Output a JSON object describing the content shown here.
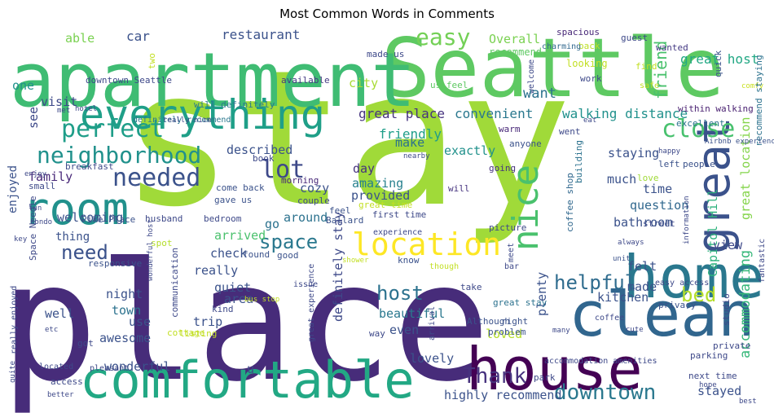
{
  "chart_data": {
    "type": "wordcloud",
    "title": "Most Common Words in Comments",
    "colormap": "viridis",
    "words": [
      {
        "text": "stay",
        "color": "#a0da39"
      },
      {
        "text": "place",
        "color": "#472c7a"
      },
      {
        "text": "Seattle",
        "color": "#5ec962"
      },
      {
        "text": "apartment",
        "color": "#3fbc73"
      },
      {
        "text": "house",
        "color": "#440154"
      },
      {
        "text": "clean",
        "color": "#31668e"
      },
      {
        "text": "home",
        "color": "#2a788e"
      },
      {
        "text": "comfortable",
        "color": "#22a884"
      },
      {
        "text": "room",
        "color": "#21918c"
      },
      {
        "text": "everything",
        "color": "#1f9f88"
      },
      {
        "text": "location",
        "color": "#fde725"
      },
      {
        "text": "neighborhood",
        "color": "#21918c"
      },
      {
        "text": "great",
        "color": "#3b528b"
      },
      {
        "text": "nice",
        "color": "#4ac16d"
      },
      {
        "text": "perfect",
        "color": "#1f9e89"
      },
      {
        "text": "needed",
        "color": "#3b528b"
      },
      {
        "text": "close",
        "color": "#48c16e"
      },
      {
        "text": "easy",
        "color": "#73d056"
      },
      {
        "text": "downtown",
        "color": "#2a788e"
      },
      {
        "text": "lot",
        "color": "#3e4989"
      },
      {
        "text": "space",
        "color": "#2a788e"
      },
      {
        "text": "need",
        "color": "#3b528b"
      },
      {
        "text": "host",
        "color": "#2c728e"
      },
      {
        "text": "helpful",
        "color": "#2f6c8e"
      },
      {
        "text": "Thank",
        "color": "#46327e"
      },
      {
        "text": "bed",
        "color": "#b5de2b"
      },
      {
        "text": "friend",
        "color": "#4ac16d"
      },
      {
        "text": "accommodating",
        "color": "#35b779"
      },
      {
        "text": "Capitol Hill",
        "color": "#2db27d"
      },
      {
        "text": "great location",
        "color": "#84d44b"
      },
      {
        "text": "great host",
        "color": "#22a884"
      },
      {
        "text": "walking distance",
        "color": "#21918c"
      },
      {
        "text": "great place",
        "color": "#46337f"
      },
      {
        "text": "convenient",
        "color": "#2a788e"
      },
      {
        "text": "restaurant",
        "color": "#3b528b"
      },
      {
        "text": "car",
        "color": "#3b528b"
      },
      {
        "text": "able",
        "color": "#7ad151"
      },
      {
        "text": "Overall",
        "color": "#7ad151"
      },
      {
        "text": "recommend",
        "color": "#5ec962"
      },
      {
        "text": "made us",
        "color": "#3e4989"
      },
      {
        "text": "spacious",
        "color": "#482878"
      },
      {
        "text": "guest",
        "color": "#3e4989"
      },
      {
        "text": "back",
        "color": "#bddf26"
      },
      {
        "text": "wanted",
        "color": "#443983"
      },
      {
        "text": "charming",
        "color": "#31688e"
      },
      {
        "text": "looking",
        "color": "#c2df23"
      },
      {
        "text": "quick",
        "color": "#3b528b"
      },
      {
        "text": "find",
        "color": "#c2df23"
      },
      {
        "text": "work",
        "color": "#3e4989"
      },
      {
        "text": "us feel",
        "color": "#5ec962"
      },
      {
        "text": "welcome",
        "color": "#3e4989"
      },
      {
        "text": "safe",
        "color": "#c2df23"
      },
      {
        "text": "comfy",
        "color": "#c8e020"
      },
      {
        "text": "available",
        "color": "#443983"
      },
      {
        "text": "downtown Seattle",
        "color": "#3e4989"
      },
      {
        "text": "one",
        "color": "#21918c"
      },
      {
        "text": "visit",
        "color": "#3e4989"
      },
      {
        "text": "see",
        "color": "#3e4989"
      },
      {
        "text": "city",
        "color": "#a8db34"
      },
      {
        "text": "want",
        "color": "#2c728e"
      },
      {
        "text": "will definitely",
        "color": "#2a788e"
      },
      {
        "text": "definitely recommend",
        "color": "#2a788e"
      },
      {
        "text": "within walking",
        "color": "#481f70"
      },
      {
        "text": "excellent",
        "color": "#2c728e"
      },
      {
        "text": "warm",
        "color": "#482878"
      },
      {
        "text": "went",
        "color": "#3e4989"
      },
      {
        "text": "staying",
        "color": "#3b528b"
      },
      {
        "text": "recommend staying",
        "color": "#2c728e"
      },
      {
        "text": "Airbnb experience",
        "color": "#3b528b"
      },
      {
        "text": "happy",
        "color": "#3e4989"
      },
      {
        "text": "people",
        "color": "#3b528b"
      },
      {
        "text": "left",
        "color": "#3b528b"
      },
      {
        "text": "building",
        "color": "#2c728e"
      },
      {
        "text": "described",
        "color": "#3b528b"
      },
      {
        "text": "friendly",
        "color": "#1f9e89"
      },
      {
        "text": "exactly",
        "color": "#21918c"
      },
      {
        "text": "make",
        "color": "#2c728e"
      },
      {
        "text": "day",
        "color": "#46327e"
      },
      {
        "text": "amazing",
        "color": "#27808e"
      },
      {
        "text": "much",
        "color": "#3b528b"
      },
      {
        "text": "time",
        "color": "#3b528b"
      },
      {
        "text": "question",
        "color": "#31688e"
      },
      {
        "text": "love",
        "color": "#a0da39"
      },
      {
        "text": "street",
        "color": "#3e4989"
      },
      {
        "text": "family",
        "color": "#482878"
      },
      {
        "text": "cozy",
        "color": "#3b528b"
      },
      {
        "text": "provided",
        "color": "#3b528b"
      },
      {
        "text": "morning",
        "color": "#482878"
      },
      {
        "text": "first time",
        "color": "#3e4989"
      },
      {
        "text": "book",
        "color": "#3e4989"
      },
      {
        "text": "going",
        "color": "#46337f"
      },
      {
        "text": "will",
        "color": "#46337f"
      },
      {
        "text": "couple",
        "color": "#3e4989"
      },
      {
        "text": "great time",
        "color": "#c2df23"
      },
      {
        "text": "anyone",
        "color": "#3b528b"
      },
      {
        "text": "enjoyed",
        "color": "#3b528b"
      },
      {
        "text": "welcoming",
        "color": "#3b528b"
      },
      {
        "text": "thing",
        "color": "#3b528b"
      },
      {
        "text": "around",
        "color": "#2c728e"
      },
      {
        "text": "go",
        "color": "#2c728e"
      },
      {
        "text": "come back",
        "color": "#3b528b"
      },
      {
        "text": "gave us",
        "color": "#3b528b"
      },
      {
        "text": "feel",
        "color": "#3b528b"
      },
      {
        "text": "Ballard",
        "color": "#3b528b"
      },
      {
        "text": "bathroom",
        "color": "#3b528b"
      },
      {
        "text": "coffee shop",
        "color": "#31688e"
      },
      {
        "text": "Pike Place",
        "color": "#3b528b"
      },
      {
        "text": "Space Needle",
        "color": "#3e4989"
      },
      {
        "text": "arrived",
        "color": "#4ac16d"
      },
      {
        "text": "check",
        "color": "#3b528b"
      },
      {
        "text": "really",
        "color": "#3b528b"
      },
      {
        "text": "quiet",
        "color": "#3b528b"
      },
      {
        "text": "area",
        "color": "#3b528b"
      },
      {
        "text": "felt",
        "color": "#3b528b"
      },
      {
        "text": "made",
        "color": "#3b528b"
      },
      {
        "text": "view",
        "color": "#3e4989"
      },
      {
        "text": "plenty",
        "color": "#3b528b"
      },
      {
        "text": "kitchen",
        "color": "#3b528b"
      },
      {
        "text": "definitely stay",
        "color": "#3e4989"
      },
      {
        "text": "beautiful",
        "color": "#2a788e"
      },
      {
        "text": "even",
        "color": "#3b528b"
      },
      {
        "text": "night",
        "color": "#3b528b"
      },
      {
        "text": "well",
        "color": "#3b528b"
      },
      {
        "text": "town",
        "color": "#2c728e"
      },
      {
        "text": "trip",
        "color": "#3b528b"
      },
      {
        "text": "awesome",
        "color": "#3b528b"
      },
      {
        "text": "use",
        "color": "#3b528b"
      },
      {
        "text": "wonderful",
        "color": "#3b528b"
      },
      {
        "text": "loved",
        "color": "#b5de2b"
      },
      {
        "text": "lovely",
        "color": "#3b528b"
      },
      {
        "text": "highly recommend",
        "color": "#3b528b"
      },
      {
        "text": "stayed",
        "color": "#3b528b"
      },
      {
        "text": "next time",
        "color": "#3e4989"
      },
      {
        "text": "parking",
        "color": "#3e4989"
      },
      {
        "text": "private",
        "color": "#3e4989"
      },
      {
        "text": "accommodation amenities",
        "color": "#3e4989"
      },
      {
        "text": "Although",
        "color": "#3b528b"
      },
      {
        "text": "right",
        "color": "#3b528b"
      },
      {
        "text": "park",
        "color": "#3e4989"
      },
      {
        "text": "great stay",
        "color": "#2c728e"
      },
      {
        "text": "problem",
        "color": "#3b528b"
      },
      {
        "text": "privacy",
        "color": "#3b528b"
      },
      {
        "text": "unit",
        "color": "#3b528b"
      },
      {
        "text": "studio",
        "color": "#3e4989"
      },
      {
        "text": "fantastic",
        "color": "#3e4989"
      },
      {
        "text": "responsive",
        "color": "#3b528b"
      },
      {
        "text": "spot",
        "color": "#b5de2b"
      },
      {
        "text": "found",
        "color": "#3b528b"
      },
      {
        "text": "good",
        "color": "#3b528b"
      },
      {
        "text": "know",
        "color": "#3b528b"
      },
      {
        "text": "communication",
        "color": "#3e4989"
      },
      {
        "text": "kind",
        "color": "#3e4989"
      },
      {
        "text": "cottage",
        "color": "#c2df23"
      },
      {
        "text": "listing",
        "color": "#c2df23"
      },
      {
        "text": "great experience",
        "color": "#3e4989"
      },
      {
        "text": "arrival",
        "color": "#3e4989"
      },
      {
        "text": "way",
        "color": "#3e4989"
      },
      {
        "text": "really enjoyed",
        "color": "#3e4989"
      },
      {
        "text": "got",
        "color": "#3e4989"
      },
      {
        "text": "access",
        "color": "#3e4989"
      },
      {
        "text": "located",
        "color": "#3e4989"
      },
      {
        "text": "pleasant",
        "color": "#3e4989"
      },
      {
        "text": "better",
        "color": "#3e4989"
      },
      {
        "text": "quite",
        "color": "#3e4989"
      },
      {
        "text": "u",
        "color": "#3e4989"
      },
      {
        "text": "husband",
        "color": "#3e4989"
      },
      {
        "text": "bedroom",
        "color": "#3e4989"
      },
      {
        "text": "picture",
        "color": "#3e4989"
      },
      {
        "text": "coffee",
        "color": "#3e4989"
      },
      {
        "text": "take",
        "color": "#3e4989"
      },
      {
        "text": "experience",
        "color": "#3e4989"
      },
      {
        "text": "issue",
        "color": "#3e4989"
      },
      {
        "text": "bus stop",
        "color": "#c2df23"
      },
      {
        "text": "shower",
        "color": "#c2df23"
      },
      {
        "text": "bar",
        "color": "#3e4989"
      },
      {
        "text": "though",
        "color": "#c2df23"
      },
      {
        "text": "easy access",
        "color": "#3e4989"
      },
      {
        "text": "information",
        "color": "#3e4989"
      },
      {
        "text": "always",
        "color": "#3e4989"
      },
      {
        "text": "meet",
        "color": "#3e4989"
      },
      {
        "text": "condo",
        "color": "#3e4989"
      },
      {
        "text": "key",
        "color": "#3e4989"
      },
      {
        "text": "fun",
        "color": "#3e4989"
      },
      {
        "text": "small",
        "color": "#3e4989"
      },
      {
        "text": "enjoy",
        "color": "#3e4989"
      },
      {
        "text": "breakfast",
        "color": "#3e4989"
      },
      {
        "text": "hotel",
        "color": "#3e4989"
      },
      {
        "text": "met",
        "color": "#3e4989"
      },
      {
        "text": "really nice",
        "color": "#3e4989"
      },
      {
        "text": "wonderful host",
        "color": "#3e4989"
      },
      {
        "text": "etc",
        "color": "#3e4989"
      },
      {
        "text": "two",
        "color": "#c2df23"
      },
      {
        "text": "nearby",
        "color": "#3e4989"
      },
      {
        "text": "eat",
        "color": "#3e4989"
      },
      {
        "text": "many",
        "color": "#3e4989"
      },
      {
        "text": "cute",
        "color": "#3e4989"
      },
      {
        "text": "hope",
        "color": "#3e4989"
      },
      {
        "text": "best",
        "color": "#3e4989"
      }
    ]
  }
}
